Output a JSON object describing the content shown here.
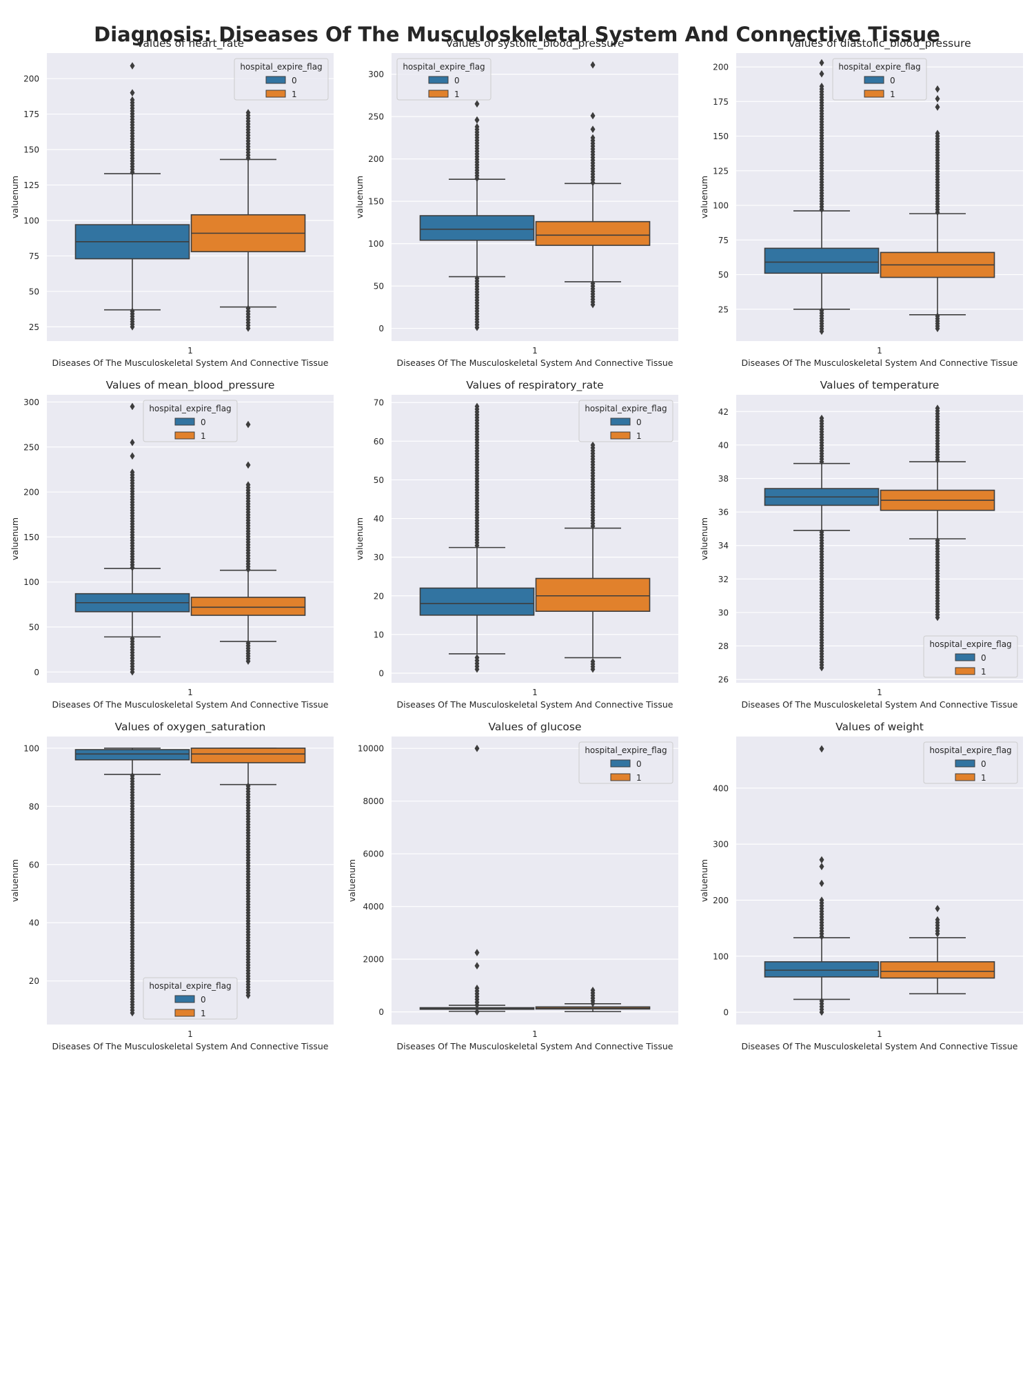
{
  "figure": {
    "suptitle": "Diagnosis: Diseases Of The Musculoskeletal System And Connective Tissue"
  },
  "colors": {
    "series_0": "#3274a1",
    "series_1": "#e1812c",
    "axes_bg": "#eaeaf2",
    "grid": "#ffffff",
    "lines": "#3d3d3d"
  },
  "chart_data": [
    {
      "type": "box",
      "title": "Values of heart_rate",
      "xlabel": "Diseases Of The Musculoskeletal System And Connective Tissue",
      "ylabel": "valuenum",
      "categories": [
        "1"
      ],
      "ylim": [
        15,
        218
      ],
      "yticks": [
        25,
        50,
        75,
        100,
        125,
        150,
        175,
        200
      ],
      "grid": true,
      "legend": {
        "title": "hospital_expire_flag",
        "labels": [
          "0",
          "1"
        ],
        "placement": "upper right"
      },
      "series": [
        {
          "name": "0",
          "whisker_low": 37,
          "q1": 73,
          "median": 85,
          "q3": 97,
          "whisker_high": 133,
          "fliers_low": [
            25,
            36
          ],
          "fliers_high": [
            134,
            185,
            190,
            209
          ]
        },
        {
          "name": "1",
          "whisker_low": 39,
          "q1": 78,
          "median": 91,
          "q3": 104,
          "whisker_high": 143,
          "fliers_low": [
            24,
            38
          ],
          "fliers_high": [
            144,
            176
          ]
        }
      ]
    },
    {
      "type": "box",
      "title": "Values of systolic_blood_pressure",
      "xlabel": "Diseases Of The Musculoskeletal System And Connective Tissue",
      "ylabel": "valuenum",
      "categories": [
        "1"
      ],
      "ylim": [
        -15,
        325
      ],
      "yticks": [
        0,
        50,
        100,
        150,
        200,
        250,
        300
      ],
      "grid": true,
      "legend": {
        "title": "hospital_expire_flag",
        "labels": [
          "0",
          "1"
        ],
        "placement": "upper left"
      },
      "series": [
        {
          "name": "0",
          "whisker_low": 61,
          "q1": 104,
          "median": 117,
          "q3": 133,
          "whisker_high": 176,
          "fliers_low": [
            1,
            11,
            32,
            42,
            59
          ],
          "fliers_high": [
            177,
            238,
            246,
            265
          ]
        },
        {
          "name": "1",
          "whisker_low": 55,
          "q1": 98,
          "median": 110,
          "q3": 126,
          "whisker_high": 171,
          "fliers_low": [
            28,
            53
          ],
          "fliers_high": [
            172,
            225,
            235,
            251,
            311
          ]
        }
      ]
    },
    {
      "type": "box",
      "title": "Values of diastolic_blood_pressure",
      "xlabel": "Diseases Of The Musculoskeletal System And Connective Tissue",
      "ylabel": "valuenum",
      "categories": [
        "1"
      ],
      "ylim": [
        2,
        210
      ],
      "yticks": [
        25,
        50,
        75,
        100,
        125,
        150,
        175,
        200
      ],
      "grid": true,
      "legend": {
        "title": "hospital_expire_flag",
        "labels": [
          "0",
          "1"
        ],
        "placement": "upper center"
      },
      "series": [
        {
          "name": "0",
          "whisker_low": 25,
          "q1": 51,
          "median": 59,
          "q3": 69,
          "whisker_high": 96,
          "fliers_low": [
            9,
            24
          ],
          "fliers_high": [
            97,
            186,
            195,
            203
          ]
        },
        {
          "name": "1",
          "whisker_low": 21,
          "q1": 48,
          "median": 57,
          "q3": 66,
          "whisker_high": 94,
          "fliers_low": [
            11,
            20
          ],
          "fliers_high": [
            95,
            152,
            171,
            177,
            184
          ]
        }
      ]
    },
    {
      "type": "box",
      "title": "Values of mean_blood_pressure",
      "xlabel": "Diseases Of The Musculoskeletal System And Connective Tissue",
      "ylabel": "valuenum",
      "categories": [
        "1"
      ],
      "ylim": [
        -12,
        308
      ],
      "yticks": [
        0,
        50,
        100,
        150,
        200,
        250,
        300
      ],
      "grid": true,
      "legend": {
        "title": "hospital_expire_flag",
        "labels": [
          "0",
          "1"
        ],
        "placement": "upper center"
      },
      "series": [
        {
          "name": "0",
          "whisker_low": 39,
          "q1": 67,
          "median": 77,
          "q3": 87,
          "whisker_high": 115,
          "fliers_low": [
            0,
            37
          ],
          "fliers_high": [
            116,
            222,
            240,
            255,
            295
          ]
        },
        {
          "name": "1",
          "whisker_low": 34,
          "q1": 63,
          "median": 72,
          "q3": 83,
          "whisker_high": 113,
          "fliers_low": [
            12,
            32
          ],
          "fliers_high": [
            114,
            208,
            230,
            275
          ]
        }
      ]
    },
    {
      "type": "box",
      "title": "Values of respiratory_rate",
      "xlabel": "Diseases Of The Musculoskeletal System And Connective Tissue",
      "ylabel": "valuenum",
      "categories": [
        "1"
      ],
      "ylim": [
        -2.5,
        72
      ],
      "yticks": [
        0,
        10,
        20,
        30,
        40,
        50,
        60,
        70
      ],
      "grid": true,
      "legend": {
        "title": "hospital_expire_flag",
        "labels": [
          "0",
          "1"
        ],
        "placement": "upper right"
      },
      "series": [
        {
          "name": "0",
          "whisker_low": 5,
          "q1": 15,
          "median": 18,
          "q3": 22,
          "whisker_high": 32.5,
          "fliers_low": [
            1,
            4
          ],
          "fliers_high": [
            33,
            69
          ]
        },
        {
          "name": "1",
          "whisker_low": 4,
          "q1": 16,
          "median": 20,
          "q3": 24.5,
          "whisker_high": 37.5,
          "fliers_low": [
            1,
            3
          ],
          "fliers_high": [
            38,
            59
          ]
        }
      ]
    },
    {
      "type": "box",
      "title": "Values of temperature",
      "xlabel": "Diseases Of The Musculoskeletal System And Connective Tissue",
      "ylabel": "valuenum",
      "categories": [
        "1"
      ],
      "ylim": [
        25.8,
        43
      ],
      "yticks": [
        26,
        28,
        30,
        32,
        34,
        36,
        38,
        40,
        42
      ],
      "grid": true,
      "legend": {
        "title": "hospital_expire_flag",
        "labels": [
          "0",
          "1"
        ],
        "placement": "lower right"
      },
      "series": [
        {
          "name": "0",
          "whisker_low": 34.9,
          "q1": 36.4,
          "median": 36.9,
          "q3": 37.4,
          "whisker_high": 38.9,
          "fliers_low": [
            26.7,
            28.0,
            28.9,
            30.2,
            31.0,
            34.8
          ],
          "fliers_high": [
            39.0,
            41.6
          ]
        },
        {
          "name": "1",
          "whisker_low": 34.4,
          "q1": 36.1,
          "median": 36.7,
          "q3": 37.3,
          "whisker_high": 39.0,
          "fliers_low": [
            29.7,
            30.3,
            30.7,
            34.3
          ],
          "fliers_high": [
            39.1,
            42.2
          ]
        }
      ]
    },
    {
      "type": "box",
      "title": "Values of oxygen_saturation",
      "xlabel": "Diseases Of The Musculoskeletal System And Connective Tissue",
      "ylabel": "valuenum",
      "categories": [
        "1"
      ],
      "ylim": [
        5,
        104
      ],
      "yticks": [
        20,
        40,
        60,
        80,
        100
      ],
      "grid": true,
      "legend": {
        "title": "hospital_expire_flag",
        "labels": [
          "0",
          "1"
        ],
        "placement": "lower center"
      },
      "series": [
        {
          "name": "0",
          "whisker_low": 91,
          "q1": 96,
          "median": 98,
          "q3": 99.5,
          "whisker_high": 100,
          "fliers_low": [
            9,
            90.5
          ],
          "fliers_high": []
        },
        {
          "name": "1",
          "whisker_low": 87.5,
          "q1": 95,
          "median": 98,
          "q3": 100,
          "whisker_high": 100,
          "fliers_low": [
            15,
            17,
            20,
            30,
            87
          ],
          "fliers_high": []
        }
      ]
    },
    {
      "type": "box",
      "title": "Values of glucose",
      "xlabel": "Diseases Of The Musculoskeletal System And Connective Tissue",
      "ylabel": "valuenum",
      "categories": [
        "1"
      ],
      "ylim": [
        -480,
        10450
      ],
      "yticks": [
        0,
        2000,
        4000,
        6000,
        8000,
        10000
      ],
      "grid": true,
      "legend": {
        "title": "hospital_expire_flag",
        "labels": [
          "0",
          "1"
        ],
        "placement": "upper right"
      },
      "series": [
        {
          "name": "0",
          "whisker_low": 20,
          "q1": 100,
          "median": 125,
          "q3": 160,
          "whisker_high": 250,
          "fliers_low": [
            0
          ],
          "fliers_high": [
            260,
            900,
            1750,
            2250,
            10000
          ]
        },
        {
          "name": "1",
          "whisker_low": 10,
          "q1": 110,
          "median": 140,
          "q3": 190,
          "whisker_high": 310,
          "fliers_low": [],
          "fliers_high": [
            320,
            820
          ]
        }
      ]
    },
    {
      "type": "box",
      "title": "Values of weight",
      "xlabel": "Diseases Of The Musculoskeletal System And Connective Tissue",
      "ylabel": "valuenum",
      "categories": [
        "1"
      ],
      "ylim": [
        -22,
        492
      ],
      "yticks": [
        0,
        100,
        200,
        300,
        400
      ],
      "grid": true,
      "legend": {
        "title": "hospital_expire_flag",
        "labels": [
          "0",
          "1"
        ],
        "placement": "upper right"
      },
      "series": [
        {
          "name": "0",
          "whisker_low": 23,
          "q1": 63,
          "median": 75,
          "q3": 90,
          "whisker_high": 133,
          "fliers_low": [
            0,
            10,
            20
          ],
          "fliers_high": [
            135,
            200,
            230,
            260,
            272,
            470
          ]
        },
        {
          "name": "1",
          "whisker_low": 33,
          "q1": 61,
          "median": 73,
          "q3": 90,
          "whisker_high": 133,
          "fliers_low": [],
          "fliers_high": [
            140,
            165,
            185
          ]
        }
      ]
    }
  ]
}
